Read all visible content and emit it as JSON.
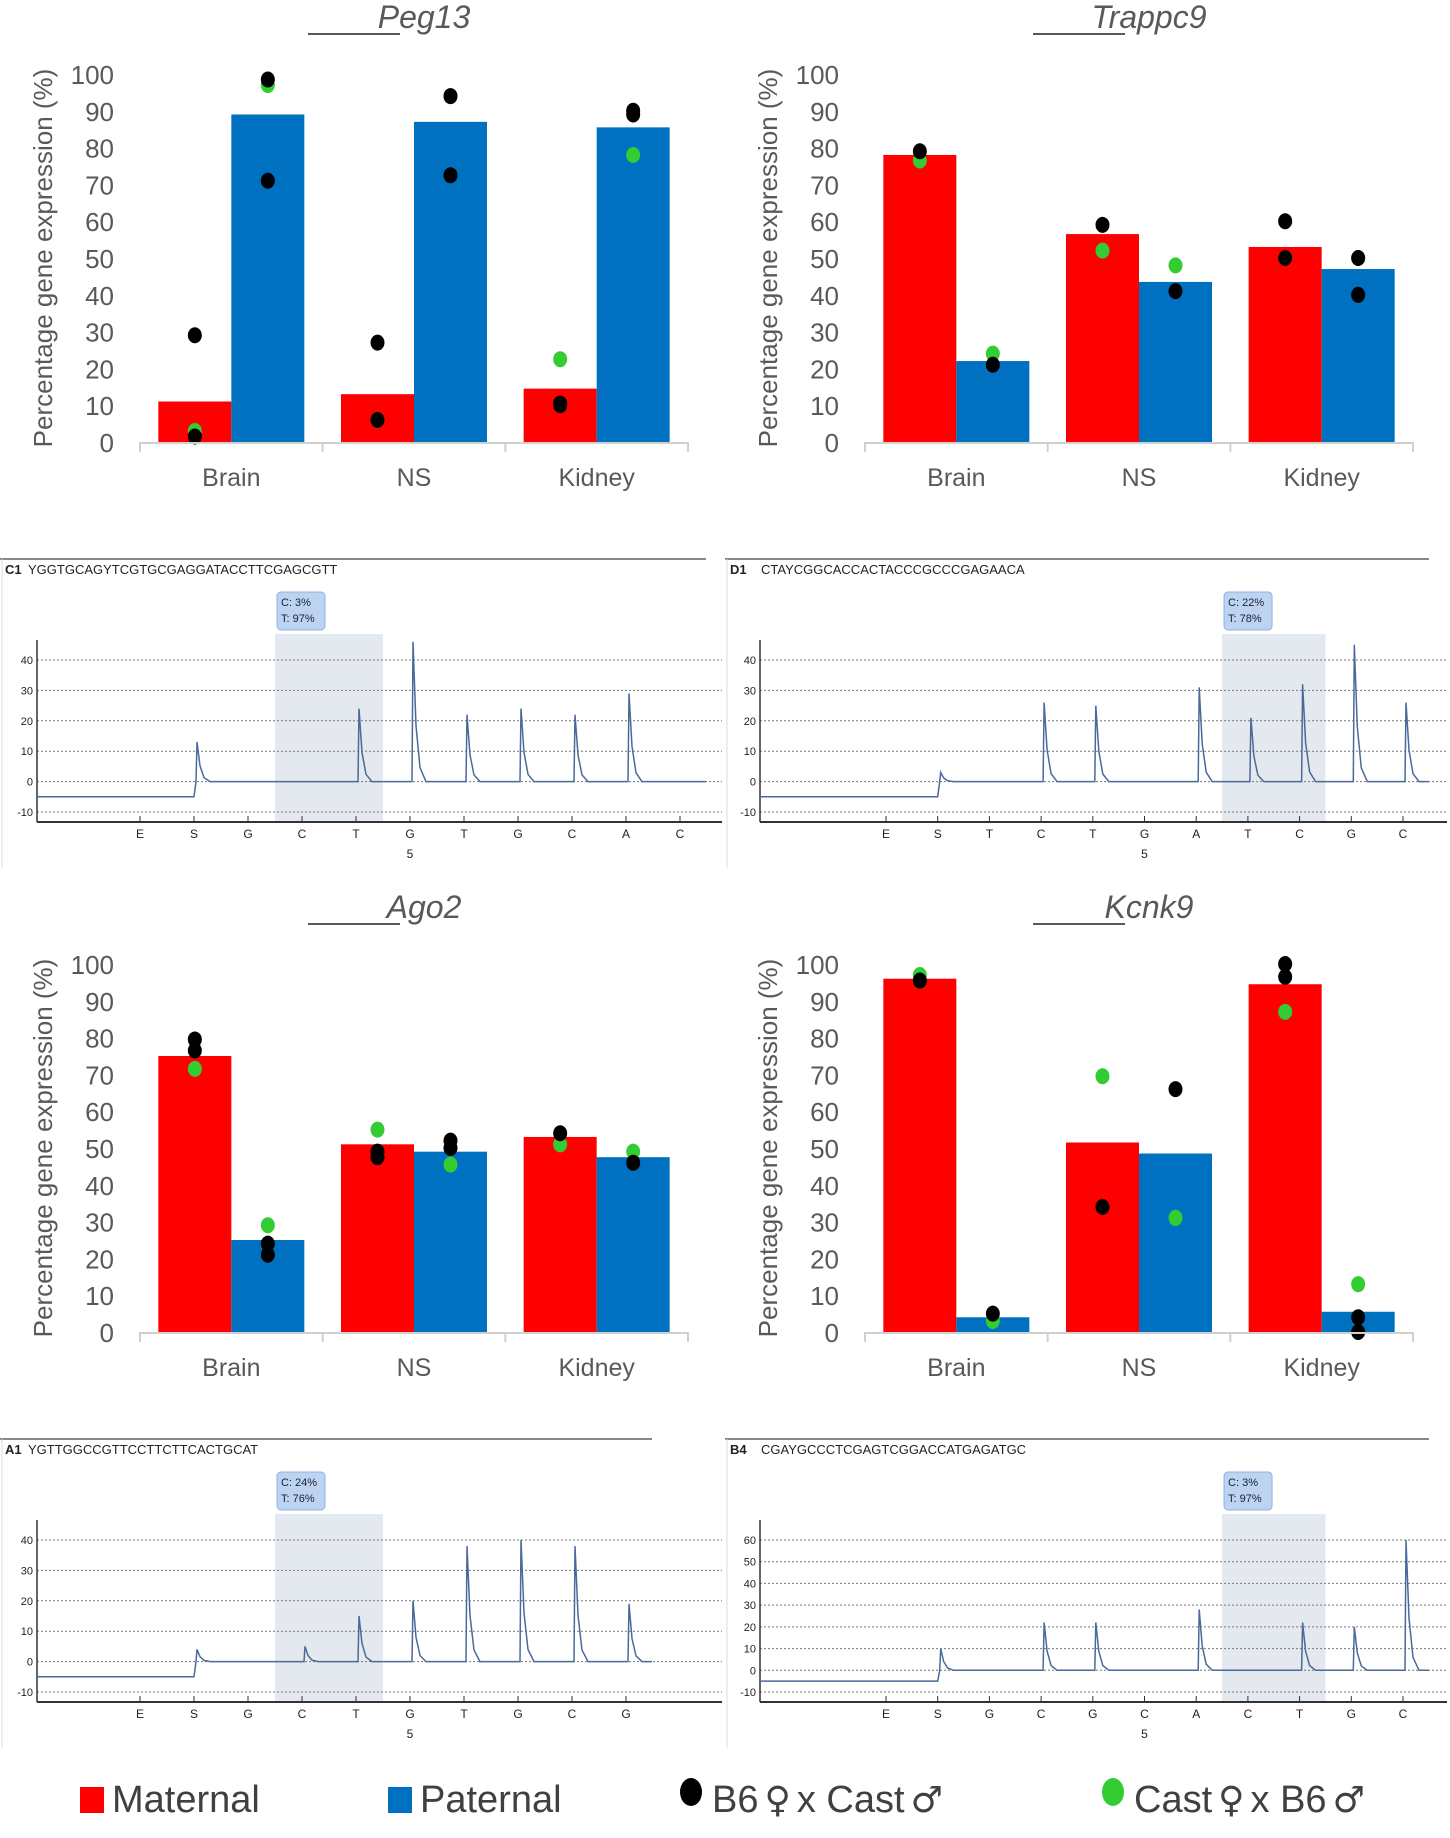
{
  "colors": {
    "maternal": "#ff0000",
    "paternal": "#0070c0",
    "b6_cross": "#000000",
    "cast_cross": "#33cc33",
    "trace": "#4a6a9a",
    "highlight": "#e4e9f0",
    "tooltip": "#bcd3f2"
  },
  "legend": {
    "maternal": "Maternal",
    "paternal": "Paternal",
    "b6_cross": {
      "a": "B6",
      "female": "♀",
      "x": "x",
      "b": "Cast",
      "male": "♂"
    },
    "cast_cross": {
      "a": "Cast",
      "female": "♀",
      "x": "x",
      "b": "B6",
      "male": "♂"
    }
  },
  "chart_data": [
    {
      "type": "bar",
      "title": "Peg13",
      "ylabel": "Percentage gene expression (%)",
      "xlabel": "",
      "ylim": [
        0,
        100
      ],
      "yticks": [
        "0",
        "10",
        "20",
        "30",
        "40",
        "50",
        "60",
        "70",
        "80",
        "90",
        "100"
      ],
      "categories": [
        "Brain",
        "NS",
        "Kidney"
      ],
      "series": [
        {
          "name": "Maternal",
          "values": [
            11,
            13,
            14.5
          ]
        },
        {
          "name": "Paternal",
          "values": [
            89,
            87,
            85.5
          ]
        }
      ],
      "points": {
        "Maternal": {
          "B6xCast": [
            [
              29,
              1.5
            ],
            [
              27,
              6
            ],
            [
              10.5,
              10
            ]
          ],
          "CastxB6": [
            [
              3
            ],
            [
              6
            ],
            [
              22.5
            ]
          ]
        },
        "Paternal": {
          "B6xCast": [
            [
              98.5,
              71
            ],
            [
              94,
              72.5
            ],
            [
              90,
              89
            ]
          ],
          "CastxB6": [
            [
              97
            ],
            [
              94
            ],
            [
              78
            ]
          ]
        }
      }
    },
    {
      "type": "bar",
      "title": "Trappc9",
      "ylabel": "Percentage gene expression (%)",
      "xlabel": "",
      "ylim": [
        0,
        100
      ],
      "yticks": [
        "0",
        "10",
        "20",
        "30",
        "40",
        "50",
        "60",
        "70",
        "80",
        "90",
        "100"
      ],
      "categories": [
        "Brain",
        "NS",
        "Kidney"
      ],
      "series": [
        {
          "name": "Maternal",
          "values": [
            78,
            56.5,
            53
          ]
        },
        {
          "name": "Paternal",
          "values": [
            22,
            43.5,
            47
          ]
        }
      ],
      "points": {
        "Maternal": {
          "B6xCast": [
            [
              79
            ],
            [
              59
            ],
            [
              60,
              50
            ]
          ],
          "CastxB6": [
            [
              76.5
            ],
            [
              52
            ],
            [
              50
            ]
          ]
        },
        "Paternal": {
          "B6xCast": [
            [
              21
            ],
            [
              41
            ],
            [
              50,
              40
            ]
          ],
          "CastxB6": [
            [
              24
            ],
            [
              48
            ],
            [
              50
            ]
          ]
        }
      }
    },
    {
      "type": "bar",
      "title": "Ago2",
      "ylabel": "Percentage gene expression (%)",
      "xlabel": "",
      "ylim": [
        0,
        100
      ],
      "yticks": [
        "0",
        "10",
        "20",
        "30",
        "40",
        "50",
        "60",
        "70",
        "80",
        "90",
        "100"
      ],
      "categories": [
        "Brain",
        "NS",
        "Kidney"
      ],
      "series": [
        {
          "name": "Maternal",
          "values": [
            75,
            51,
            53
          ]
        },
        {
          "name": "Paternal",
          "values": [
            25,
            49,
            47.5
          ]
        }
      ],
      "points": {
        "Maternal": {
          "B6xCast": [
            [
              79.5,
              76.5
            ],
            [
              49,
              47.5
            ],
            [
              54
            ]
          ],
          "CastxB6": [
            [
              71.5
            ],
            [
              55
            ],
            [
              51
            ]
          ]
        },
        "Paternal": {
          "B6xCast": [
            [
              24,
              21
            ],
            [
              52,
              50
            ],
            [
              46
            ]
          ],
          "CastxB6": [
            [
              29
            ],
            [
              45.5
            ],
            [
              49
            ]
          ]
        }
      }
    },
    {
      "type": "bar",
      "title": "Kcnk9",
      "ylabel": "Percentage gene expression (%)",
      "xlabel": "",
      "ylim": [
        0,
        100
      ],
      "yticks": [
        "0",
        "10",
        "20",
        "30",
        "40",
        "50",
        "60",
        "70",
        "80",
        "90",
        "100"
      ],
      "categories": [
        "Brain",
        "NS",
        "Kidney"
      ],
      "series": [
        {
          "name": "Maternal",
          "values": [
            96,
            51.5,
            94.5
          ]
        },
        {
          "name": "Paternal",
          "values": [
            4,
            48.5,
            5.5
          ]
        }
      ],
      "points": {
        "Maternal": {
          "B6xCast": [
            [
              95.5
            ],
            [
              34
            ],
            [
              100,
              96.5
            ]
          ],
          "CastxB6": [
            [
              97
            ],
            [
              69.5
            ],
            [
              87
            ]
          ]
        },
        "Paternal": {
          "B6xCast": [
            [
              5
            ],
            [
              66
            ],
            [
              4,
              0
            ]
          ],
          "CastxB6": [
            [
              3
            ],
            [
              31
            ],
            [
              13
            ]
          ]
        }
      }
    },
    {
      "type": "line",
      "subtype": "pyrogram",
      "well": "C1",
      "sequence": "YGGTGCAGYTCGTGCGAGGATACCTTCGAGCGTT",
      "dispensation": [
        "E",
        "S",
        "G",
        "C",
        "T",
        "G",
        "T",
        "G",
        "C",
        "A",
        "C"
      ],
      "dispensation_number": "5",
      "peaks": [
        0,
        13,
        0,
        0,
        24,
        46,
        22,
        24,
        22,
        29,
        0
      ],
      "yticks": [
        "40",
        "30",
        "20",
        "10",
        "0",
        "-10"
      ],
      "ylim": [
        -10,
        40
      ],
      "highlight": [
        3,
        4
      ],
      "tooltip": {
        "c": "C: 3%",
        "t": "T: 97%"
      }
    },
    {
      "type": "line",
      "subtype": "pyrogram",
      "well": "D1",
      "sequence": "CTAYCGGCACCACTACCCGCCCGAGAACA",
      "dispensation": [
        "E",
        "S",
        "T",
        "C",
        "T",
        "G",
        "A",
        "T",
        "C",
        "G",
        "C"
      ],
      "dispensation_number": "5",
      "peaks": [
        0,
        3,
        0,
        26,
        25,
        0,
        31,
        21,
        32,
        45,
        26
      ],
      "yticks": [
        "40",
        "30",
        "20",
        "10",
        "0",
        "-10"
      ],
      "ylim": [
        -10,
        40
      ],
      "highlight": [
        7,
        8
      ],
      "tooltip": {
        "c": "C: 22%",
        "t": "T: 78%"
      }
    },
    {
      "type": "line",
      "subtype": "pyrogram",
      "well": "A1",
      "sequence": "YGTTGGCCGTTCCTTCTTCACTGCAT",
      "dispensation": [
        "E",
        "S",
        "G",
        "C",
        "T",
        "G",
        "T",
        "G",
        "C",
        "G"
      ],
      "dispensation_number": "5",
      "peaks": [
        0,
        4,
        0,
        5,
        15,
        20,
        38,
        40,
        38,
        19
      ],
      "yticks": [
        "40",
        "30",
        "20",
        "10",
        "0",
        "-10"
      ],
      "ylim": [
        -10,
        40
      ],
      "highlight": [
        3,
        4
      ],
      "tooltip": {
        "c": "C: 24%",
        "t": "T: 76%"
      }
    },
    {
      "type": "line",
      "subtype": "pyrogram",
      "well": "B4",
      "sequence": "CGAYGCCCTCGAGTCGGACCATGAGATGC",
      "dispensation": [
        "E",
        "S",
        "G",
        "C",
        "G",
        "C",
        "A",
        "C",
        "T",
        "G",
        "C"
      ],
      "dispensation_number": "5",
      "peaks": [
        0,
        10,
        0,
        22,
        22,
        0,
        28,
        0,
        22,
        20,
        60
      ],
      "yticks": [
        "60",
        "50",
        "40",
        "30",
        "20",
        "10",
        "0",
        "-10"
      ],
      "ylim": [
        -10,
        60
      ],
      "highlight": [
        7,
        8
      ],
      "tooltip": {
        "c": "C: 3%",
        "t": "T: 97%"
      }
    }
  ]
}
